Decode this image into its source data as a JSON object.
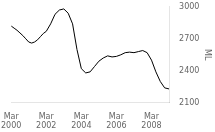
{
  "chart_data": {
    "type": "line",
    "ylabel": "ML",
    "x": [
      0,
      2,
      4,
      6,
      8,
      10,
      12,
      14,
      16,
      18,
      20,
      22,
      24,
      27,
      30,
      33,
      36,
      39,
      42,
      45,
      48,
      51,
      54,
      57,
      60,
      63,
      66,
      69,
      72,
      75,
      78,
      81,
      84,
      87,
      90,
      93,
      96,
      99,
      102,
      105,
      108
    ],
    "values": [
      2820,
      2800,
      2780,
      2755,
      2730,
      2700,
      2670,
      2660,
      2670,
      2690,
      2720,
      2750,
      2770,
      2840,
      2930,
      2970,
      2980,
      2940,
      2840,
      2600,
      2420,
      2380,
      2390,
      2440,
      2490,
      2520,
      2540,
      2530,
      2535,
      2550,
      2570,
      2575,
      2570,
      2580,
      2590,
      2570,
      2500,
      2390,
      2300,
      2240,
      2230
    ],
    "color": "#000000",
    "xlim": [
      0,
      108
    ],
    "xticks": [
      {
        "value": 0,
        "label": "Mar\n2000"
      },
      {
        "value": 24,
        "label": "Mar\n2002"
      },
      {
        "value": 48,
        "label": "Mar\n2004"
      },
      {
        "value": 72,
        "label": "Mar\n2006"
      },
      {
        "value": 96,
        "label": "Mar\n2008"
      }
    ],
    "ylim": [
      2100,
      3000
    ],
    "yticks": [
      2100,
      2400,
      2700,
      3000
    ],
    "grid": false
  }
}
